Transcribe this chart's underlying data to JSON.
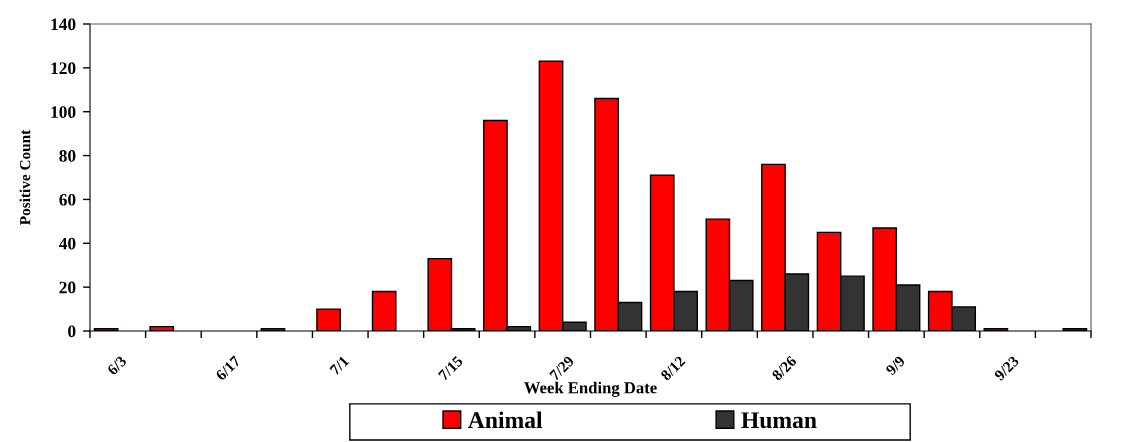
{
  "chart_data": {
    "type": "bar",
    "xlabel": "Week Ending Date",
    "ylabel": "Positive Count",
    "categories": [
      "6/3",
      null,
      "6/17",
      null,
      "7/1",
      null,
      "7/15",
      null,
      "7/29",
      null,
      "8/12",
      null,
      "8/26",
      null,
      "9/9",
      null,
      "9/23",
      null
    ],
    "series": [
      {
        "name": "Animal",
        "color": "#ff0000",
        "values": [
          1,
          2,
          0,
          1,
          10,
          18,
          33,
          96,
          123,
          106,
          71,
          51,
          76,
          45,
          47,
          18,
          1,
          0
        ]
      },
      {
        "name": "Human",
        "color": "#333333",
        "values": [
          0,
          0,
          0,
          0,
          0,
          0,
          1,
          2,
          4,
          13,
          18,
          23,
          26,
          25,
          21,
          11,
          0,
          1
        ]
      }
    ],
    "ylim": [
      0,
      140
    ],
    "yticks": [
      0,
      20,
      40,
      60,
      80,
      100,
      120,
      140
    ],
    "grid": false,
    "legend": "bottom"
  }
}
